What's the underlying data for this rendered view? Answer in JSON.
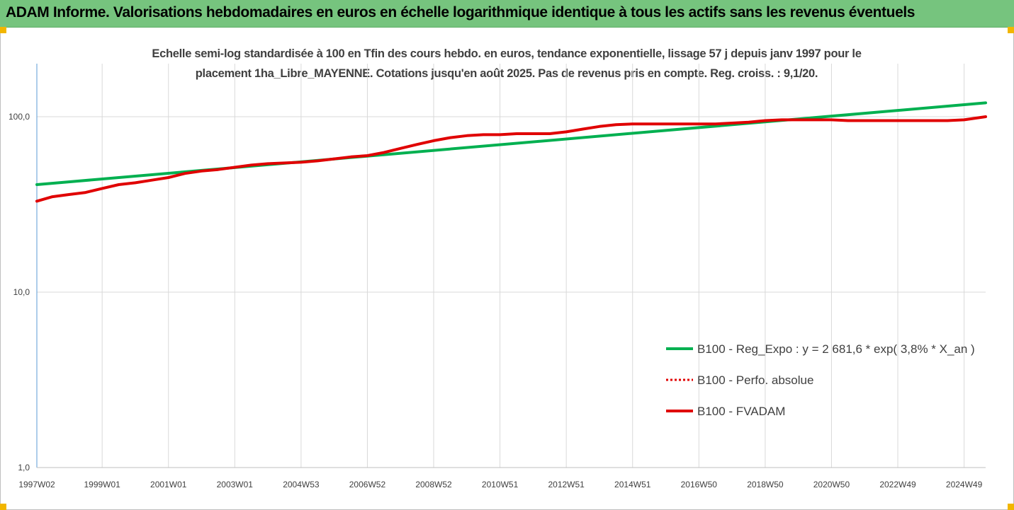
{
  "header": {
    "title": "ADAM Informe. Valorisations hebdomadaires en euros en échelle logarithmique identique à tous les actifs sans les revenus éventuels"
  },
  "chart_data": {
    "type": "line",
    "title_line1": "Echelle semi-log standardisée à 100 en Tfin des cours hebdo. en euros, tendance exponentielle, lissage 57 j depuis janv 1997 pour le",
    "title_line2": "placement 1ha_Libre_MAYENNE.  Cotations jusqu'en août 2025. Pas de revenus pris en compte. Reg. croiss. : 9,1/20.",
    "y_scale": "log",
    "ylim": [
      1,
      200
    ],
    "y_ticks": [
      {
        "value": 1,
        "label": "1,0"
      },
      {
        "value": 10,
        "label": "10,0"
      },
      {
        "value": 100,
        "label": "100,0"
      }
    ],
    "x_range": [
      1997.03,
      2025.65
    ],
    "x_ticks": [
      {
        "t": 1997.03,
        "label": "1997W02"
      },
      {
        "t": 1999.0,
        "label": "1999W01"
      },
      {
        "t": 2001.0,
        "label": "2001W01"
      },
      {
        "t": 2003.0,
        "label": "2003W01"
      },
      {
        "t": 2005.0,
        "label": "2004W53"
      },
      {
        "t": 2007.0,
        "label": "2006W52"
      },
      {
        "t": 2009.0,
        "label": "2008W52"
      },
      {
        "t": 2011.0,
        "label": "2010W51"
      },
      {
        "t": 2013.0,
        "label": "2012W51"
      },
      {
        "t": 2015.0,
        "label": "2014W51"
      },
      {
        "t": 2017.0,
        "label": "2016W50"
      },
      {
        "t": 2019.0,
        "label": "2018W50"
      },
      {
        "t": 2021.0,
        "label": "2020W50"
      },
      {
        "t": 2023.0,
        "label": "2022W49"
      },
      {
        "t": 2025.0,
        "label": "2024W49"
      }
    ],
    "grid": "vertical",
    "legend_position": "bottom-right",
    "series": [
      {
        "name": "B100 - Reg_Expo : y = 2 681,6 * exp( 3,8% *  X_an )",
        "color": "#00b050",
        "style": "solid",
        "x": [
          1997.03,
          2025.65
        ],
        "y": [
          41,
          120
        ]
      },
      {
        "name": "B100 - Perfo. absolue",
        "color": "#e00000",
        "style": "dotted",
        "x": [],
        "y": []
      },
      {
        "name": "B100 - FVADAM",
        "color": "#e00000",
        "style": "solid",
        "x": [
          1997.03,
          1997.5,
          1998.0,
          1998.5,
          1999.0,
          1999.5,
          2000.0,
          2000.5,
          2001.0,
          2001.5,
          2002.0,
          2002.5,
          2003.0,
          2003.5,
          2004.0,
          2004.5,
          2005.0,
          2005.5,
          2006.0,
          2006.5,
          2007.0,
          2007.5,
          2008.0,
          2008.5,
          2009.0,
          2009.5,
          2010.0,
          2010.5,
          2011.0,
          2011.5,
          2012.0,
          2012.5,
          2013.0,
          2013.5,
          2014.0,
          2014.5,
          2015.0,
          2015.5,
          2016.0,
          2016.5,
          2017.0,
          2017.5,
          2018.0,
          2018.5,
          2019.0,
          2019.5,
          2020.0,
          2020.5,
          2021.0,
          2021.5,
          2022.0,
          2022.5,
          2023.0,
          2023.5,
          2024.0,
          2024.5,
          2025.0,
          2025.65
        ],
        "y": [
          33,
          35,
          36,
          37,
          39,
          41,
          42,
          43.5,
          45,
          47.5,
          49,
          50,
          51.5,
          53,
          54,
          54.5,
          55,
          56,
          57.5,
          59,
          60,
          62.5,
          66,
          69.5,
          73,
          76,
          78,
          79,
          79,
          80,
          80,
          80,
          82,
          85,
          88,
          90,
          91,
          91,
          91,
          91,
          91,
          91,
          92,
          93,
          95,
          96,
          96,
          96,
          96,
          95,
          95,
          95,
          95,
          95,
          95,
          95,
          96,
          100
        ]
      }
    ]
  }
}
